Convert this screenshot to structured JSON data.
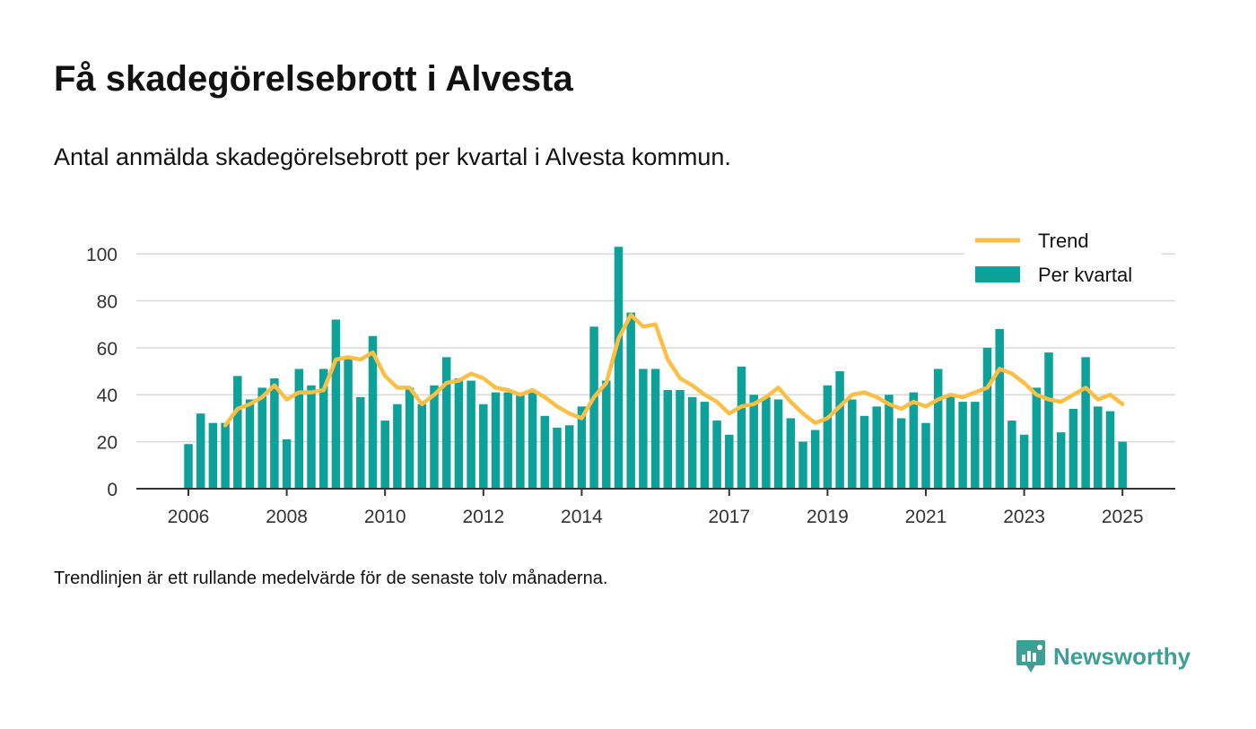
{
  "title": "Få skadegörelsebrott i Alvesta",
  "subtitle": "Antal anmälda skadegörelsebrott per kvartal i Alvesta kommun.",
  "note": "Trendlinjen är ett rullande medelvärde för de senaste tolv månaderna.",
  "brand": "Newsworthy",
  "colors": {
    "bar": "#0ea199",
    "trend": "#fbbf45",
    "grid": "#d9d9d9",
    "axis": "#333333"
  },
  "chart_data": {
    "type": "bar",
    "ylim": [
      0,
      105
    ],
    "y_ticks": [
      0,
      20,
      40,
      60,
      80,
      100
    ],
    "x_tick_labels": [
      "2006",
      "2008",
      "2010",
      "2012",
      "2014",
      "2017",
      "2019",
      "2021",
      "2023",
      "2025"
    ],
    "grid": true,
    "legend_position": "top-right",
    "categories": [
      "2006 Q1",
      "2006 Q2",
      "2006 Q3",
      "2006 Q4",
      "2007 Q1",
      "2007 Q2",
      "2007 Q3",
      "2007 Q4",
      "2008 Q1",
      "2008 Q2",
      "2008 Q3",
      "2008 Q4",
      "2009 Q1",
      "2009 Q2",
      "2009 Q3",
      "2009 Q4",
      "2010 Q1",
      "2010 Q2",
      "2010 Q3",
      "2010 Q4",
      "2011 Q1",
      "2011 Q2",
      "2011 Q3",
      "2011 Q4",
      "2012 Q1",
      "2012 Q2",
      "2012 Q3",
      "2012 Q4",
      "2013 Q1",
      "2013 Q2",
      "2013 Q3",
      "2013 Q4",
      "2014 Q1",
      "2014 Q2",
      "2014 Q3",
      "2014 Q4",
      "2015 Q1",
      "2015 Q2",
      "2015 Q3",
      "2015 Q4",
      "2016 Q1",
      "2016 Q2",
      "2016 Q3",
      "2016 Q4",
      "2017 Q1",
      "2017 Q2",
      "2017 Q3",
      "2017 Q4",
      "2018 Q1",
      "2018 Q2",
      "2018 Q3",
      "2018 Q4",
      "2019 Q1",
      "2019 Q2",
      "2019 Q3",
      "2019 Q4",
      "2020 Q1",
      "2020 Q2",
      "2020 Q3",
      "2020 Q4",
      "2021 Q1",
      "2021 Q2",
      "2021 Q3",
      "2021 Q4",
      "2022 Q1",
      "2022 Q2",
      "2022 Q3",
      "2022 Q4",
      "2023 Q1",
      "2023 Q2",
      "2023 Q3",
      "2023 Q4",
      "2024 Q1",
      "2024 Q2",
      "2024 Q3",
      "2024 Q4",
      "2025 Q1"
    ],
    "series": [
      {
        "name": "Per kvartal",
        "type": "bar",
        "values": [
          19,
          32,
          28,
          28,
          48,
          38,
          43,
          47,
          21,
          51,
          44,
          51,
          72,
          56,
          39,
          65,
          29,
          36,
          43,
          36,
          44,
          56,
          47,
          46,
          36,
          41,
          41,
          40,
          42,
          31,
          26,
          27,
          35,
          69,
          46,
          103,
          75,
          51,
          51,
          42,
          42,
          39,
          37,
          29,
          23,
          52,
          40,
          39,
          38,
          30,
          20,
          25,
          44,
          50,
          38,
          31,
          35,
          40,
          30,
          41,
          28,
          51,
          40,
          37,
          37,
          60,
          68,
          29,
          23,
          43,
          58,
          24,
          34,
          56,
          35,
          33,
          20
        ]
      },
      {
        "name": "Trend",
        "type": "line",
        "values": [
          null,
          null,
          null,
          27,
          34,
          36,
          39,
          44,
          38,
          41,
          41,
          42,
          55,
          56,
          55,
          58,
          48,
          43,
          43,
          36,
          40,
          45,
          46,
          49,
          47,
          43,
          42,
          40,
          42,
          39,
          35,
          32,
          30,
          39,
          45,
          64,
          74,
          69,
          70,
          55,
          47,
          44,
          40,
          37,
          32,
          35,
          36,
          39,
          43,
          37,
          32,
          28,
          30,
          35,
          40,
          41,
          39,
          36,
          34,
          37,
          35,
          38,
          40,
          39,
          41,
          43,
          51,
          49,
          45,
          40,
          38,
          37,
          40,
          43,
          38,
          40,
          36
        ]
      }
    ]
  }
}
